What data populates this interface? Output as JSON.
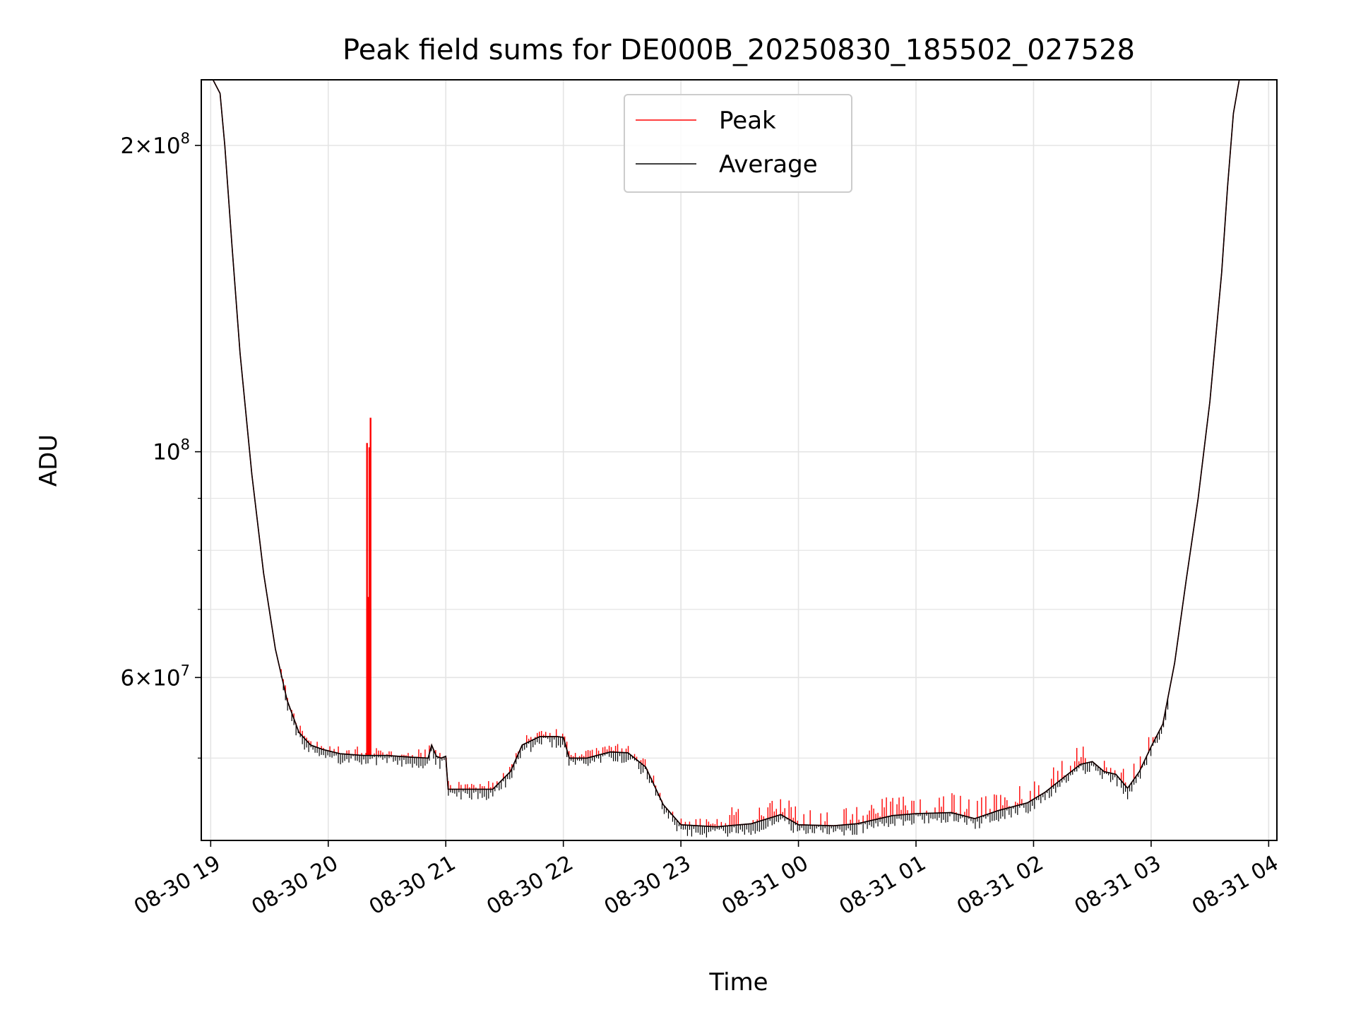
{
  "chart_data": {
    "type": "line",
    "title": "Peak field sums for DE000B_20250830_185502_027528",
    "xlabel": "Time",
    "ylabel": "ADU",
    "yscale": "log",
    "ylim": [
      41500000,
      232000000
    ],
    "xlim_hours": [
      18.92,
      28.07
    ],
    "grid": true,
    "legend": {
      "placement": "top-center",
      "entries": [
        "Peak",
        "Average"
      ]
    },
    "colors": {
      "peak": "#ff0000",
      "average": "#000000",
      "grid": "#e4e4e4"
    },
    "x_ticks": [
      {
        "hour": 19,
        "label": "08-30 19"
      },
      {
        "hour": 20,
        "label": "08-30 20"
      },
      {
        "hour": 21,
        "label": "08-30 21"
      },
      {
        "hour": 22,
        "label": "08-30 22"
      },
      {
        "hour": 23,
        "label": "08-30 23"
      },
      {
        "hour": 24,
        "label": "08-31 00"
      },
      {
        "hour": 25,
        "label": "08-31 01"
      },
      {
        "hour": 26,
        "label": "08-31 02"
      },
      {
        "hour": 27,
        "label": "08-31 03"
      },
      {
        "hour": 28,
        "label": "08-31 04"
      }
    ],
    "y_major_ticks": [
      {
        "value": 100000000,
        "base": "10",
        "exp": "8",
        "mant": ""
      },
      {
        "value": 60000000,
        "base": "10",
        "exp": "7",
        "mant": "6"
      },
      {
        "value": 200000000,
        "base": "10",
        "exp": "8",
        "mant": "2"
      }
    ],
    "y_minor_ticks": [
      50000000,
      70000000,
      80000000,
      90000000
    ],
    "series": [
      {
        "name": "Average",
        "x_hours": [
          18.92,
          19.02,
          19.08,
          19.12,
          19.18,
          19.25,
          19.35,
          19.45,
          19.55,
          19.65,
          19.75,
          19.85,
          19.95,
          20.1,
          20.3,
          20.5,
          20.7,
          20.85,
          20.88,
          20.92,
          20.96,
          21.0,
          21.02,
          21.2,
          21.4,
          21.55,
          21.65,
          21.8,
          21.95,
          22.0,
          22.05,
          22.2,
          22.4,
          22.55,
          22.7,
          22.85,
          23.0,
          23.3,
          23.6,
          23.85,
          24.0,
          24.3,
          24.5,
          24.8,
          25.0,
          25.3,
          25.4,
          25.5,
          25.7,
          25.95,
          26.1,
          26.25,
          26.4,
          26.5,
          26.6,
          26.7,
          26.8,
          26.9,
          27.0,
          27.1,
          27.2,
          27.3,
          27.4,
          27.5,
          27.6,
          27.65,
          27.7,
          27.75,
          27.82,
          28.07
        ],
        "values": [
          232000000,
          232000000,
          225000000,
          200000000,
          160000000,
          125000000,
          95000000,
          76000000,
          64000000,
          57000000,
          53000000,
          51500000,
          51000000,
          50500000,
          50300000,
          50300000,
          50100000,
          50000000,
          51500000,
          50200000,
          50000000,
          50200000,
          46600000,
          46600000,
          46600000,
          48500000,
          51500000,
          52500000,
          52500000,
          52400000,
          50000000,
          50000000,
          50700000,
          50600000,
          49000000,
          45000000,
          43000000,
          42800000,
          43100000,
          44000000,
          43000000,
          42900000,
          43100000,
          43900000,
          44100000,
          44200000,
          43900000,
          43600000,
          44400000,
          45200000,
          46300000,
          47800000,
          49300000,
          49600000,
          48500000,
          48200000,
          46700000,
          48500000,
          51300000,
          54000000,
          62000000,
          75000000,
          90000000,
          112000000,
          150000000,
          182000000,
          215000000,
          232000000,
          232000000,
          232000000
        ]
      },
      {
        "name": "Peak",
        "x_hours": [
          18.92,
          19.02,
          19.08,
          19.12,
          19.18,
          19.25,
          19.35,
          19.45,
          19.55,
          19.65,
          19.75,
          19.85,
          19.95,
          20.1,
          20.3,
          20.5,
          20.7,
          20.85,
          20.88,
          20.92,
          20.96,
          21.0,
          21.02,
          21.2,
          21.4,
          21.55,
          21.65,
          21.8,
          21.95,
          22.0,
          22.05,
          22.2,
          22.4,
          22.55,
          22.7,
          22.85,
          23.0,
          23.3,
          23.6,
          23.85,
          24.0,
          24.3,
          24.5,
          24.8,
          25.0,
          25.3,
          25.4,
          25.5,
          25.7,
          25.95,
          26.1,
          26.25,
          26.4,
          26.5,
          26.6,
          26.7,
          26.8,
          26.9,
          27.0,
          27.1,
          27.2,
          27.3,
          27.4,
          27.5,
          27.6,
          27.65,
          27.7,
          27.75,
          27.82,
          28.07
        ],
        "values": [
          232000000,
          232000000,
          225000000,
          200000000,
          160000000,
          125000000,
          95000000,
          76000000,
          64000000,
          57000000,
          53000000,
          51500000,
          51000000,
          50500000,
          50300000,
          50300000,
          50100000,
          50000000,
          51500000,
          50200000,
          50000000,
          50200000,
          46600000,
          46600000,
          46600000,
          48500000,
          51500000,
          52500000,
          52500000,
          52400000,
          50000000,
          50000000,
          50700000,
          50600000,
          49000000,
          45000000,
          43000000,
          42800000,
          43100000,
          44000000,
          43000000,
          42900000,
          43100000,
          43900000,
          44100000,
          44200000,
          43900000,
          43600000,
          44400000,
          45200000,
          46300000,
          47800000,
          49300000,
          49600000,
          48500000,
          48200000,
          46700000,
          48500000,
          51300000,
          54000000,
          62000000,
          75000000,
          90000000,
          112000000,
          150000000,
          182000000,
          215000000,
          232000000,
          232000000,
          232000000
        ],
        "spikes": [
          {
            "hour": 20.33,
            "value": 102000000
          },
          {
            "hour": 20.35,
            "value": 101000000
          },
          {
            "hour": 20.36,
            "value": 108000000
          },
          {
            "hour": 20.34,
            "value": 72000000
          }
        ]
      }
    ]
  }
}
